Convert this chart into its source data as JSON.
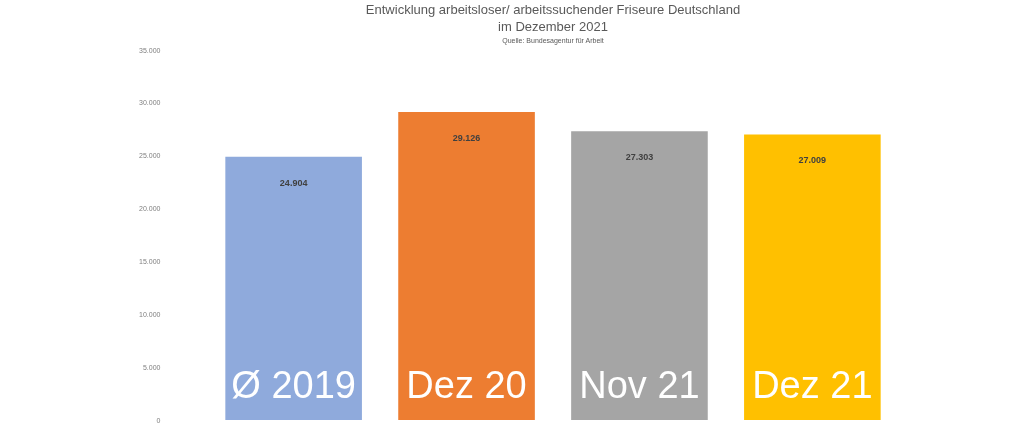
{
  "chart_data": {
    "type": "bar",
    "title": "Entwicklung arbeitsloser/ arbeitssuchender Friseure Deutschland",
    "subtitle": "im Dezember 2021",
    "annotations": [
      "Quelle: Bundesagentur für Arbeit"
    ],
    "categories": [
      "Ø 2019",
      "Dez 20",
      "Nov 21",
      "Dez 21"
    ],
    "values": [
      24904,
      29126,
      27303,
      27009
    ],
    "value_labels": [
      "24.904",
      "29.126",
      "27.303",
      "27.009"
    ],
    "colors": [
      "#8faadc",
      "#ed7d31",
      "#a5a5a5",
      "#ffc000"
    ],
    "ylim": [
      0,
      35000
    ],
    "yticks": [
      0,
      {
        "value": 5000,
        "label": "5.000"
      },
      {
        "value": 10000,
        "label": "10.000"
      },
      {
        "value": 15000,
        "label": "15.000"
      },
      {
        "value": 20000,
        "label": "20.000"
      },
      {
        "value": 25000,
        "label": "25.000"
      },
      {
        "value": 30000,
        "label": "30.000"
      },
      {
        "value": 35000,
        "label": "35.000"
      }
    ],
    "grid": false,
    "legend": false
  }
}
